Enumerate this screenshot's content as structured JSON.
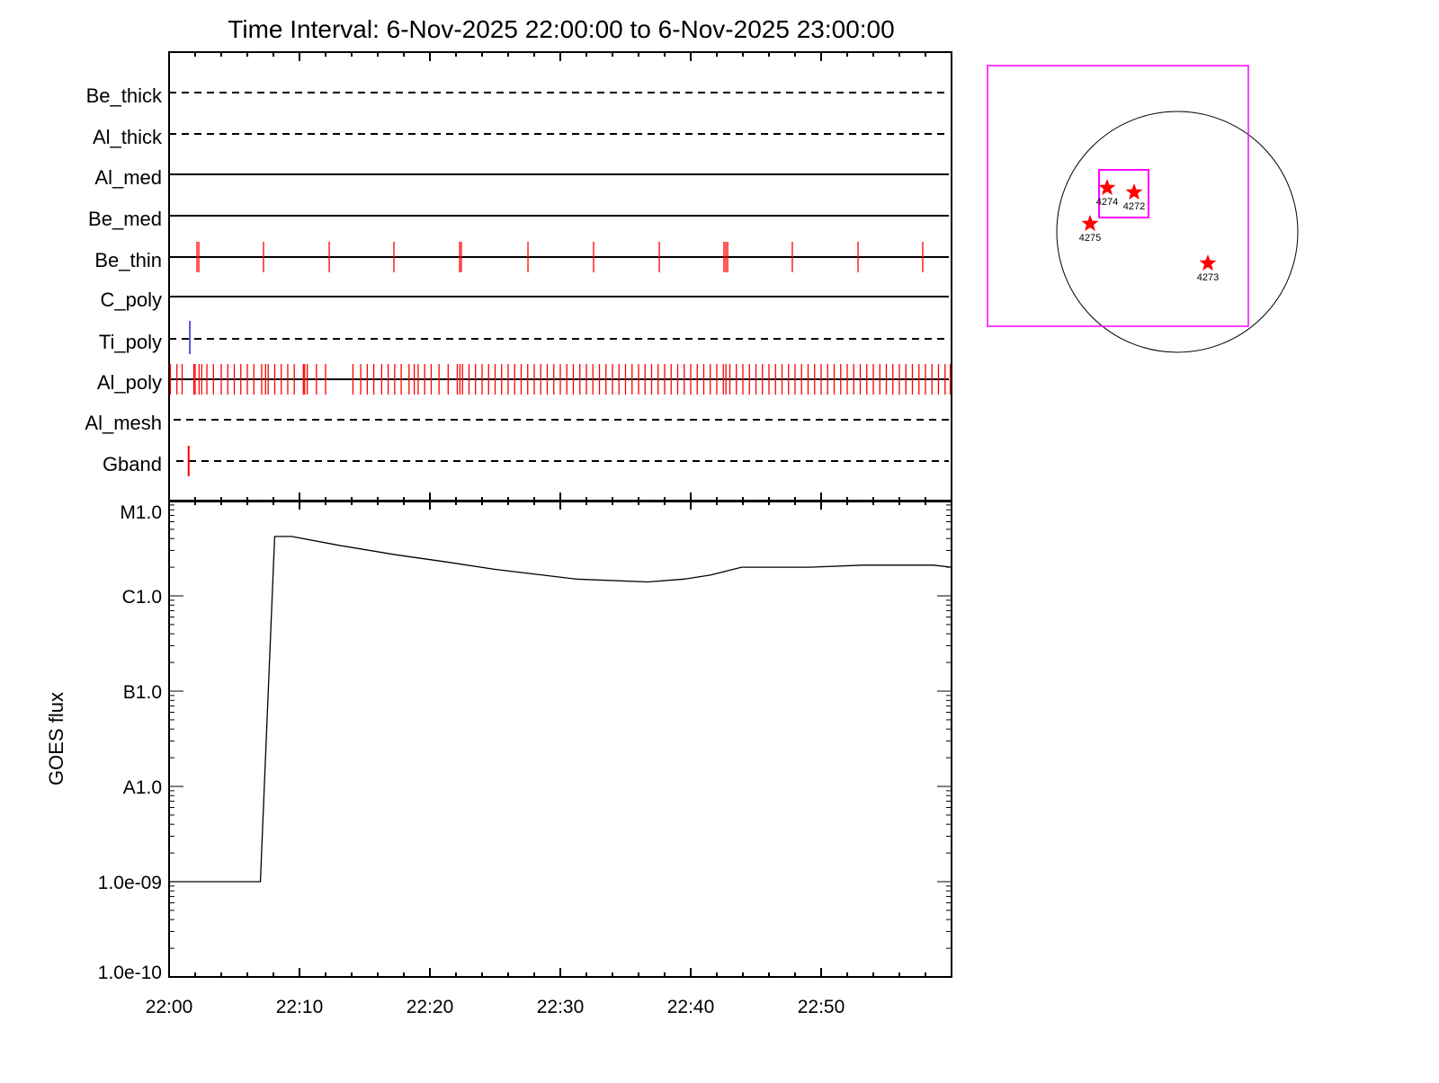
{
  "chart_data": [
    {
      "type": "event-timeline",
      "title": "Time Interval:  6-Nov-2025 22:00:00 to  6-Nov-2025 23:00:00",
      "x_range_minutes_after": "22:00",
      "xlim": [
        0,
        60
      ],
      "rows": [
        {
          "name": "Be_thick",
          "style": "dashed",
          "events": []
        },
        {
          "name": "Al_thick",
          "style": "dashed",
          "events": []
        },
        {
          "name": "Al_med",
          "style": "solid",
          "events": []
        },
        {
          "name": "Be_med",
          "style": "solid",
          "events": []
        },
        {
          "name": "Be_thin",
          "style": "solid",
          "color": "#ff0000",
          "events": [
            2.14,
            2.28,
            7.24,
            12.28,
            17.24,
            22.28,
            22.41,
            27.52,
            32.55,
            37.59,
            42.55,
            42.69,
            42.83,
            47.79,
            52.83,
            57.79
          ]
        },
        {
          "name": "C_poly",
          "style": "solid",
          "events": []
        },
        {
          "name": "Ti_poly",
          "style": "dashed",
          "color": "#0000cc",
          "events": [
            1.59
          ]
        },
        {
          "name": "Al_poly",
          "style": "solid",
          "color": "#ff0000",
          "events": [
            0.1,
            0.6,
            1.0,
            1.9,
            2.0,
            2.3,
            2.5,
            2.9,
            3.4,
            4.0,
            4.5,
            5.0,
            5.5,
            6.0,
            6.5,
            7.1,
            7.4,
            7.6,
            8.1,
            8.6,
            9.1,
            9.6,
            10.3,
            10.4,
            10.6,
            11.3,
            12.0,
            14.1,
            14.7,
            15.2,
            15.7,
            16.3,
            16.8,
            17.3,
            17.8,
            18.4,
            18.8,
            19.1,
            19.6,
            20.1,
            20.7,
            21.4,
            22.1,
            22.3,
            22.5,
            23.0,
            23.5,
            24.0,
            24.5,
            25.0,
            25.5,
            26.0,
            26.5,
            27.0,
            27.5,
            28.0,
            28.5,
            29.0,
            29.5,
            30.0,
            30.5,
            31.0,
            31.5,
            32.0,
            32.5,
            33.0,
            33.5,
            34.0,
            34.5,
            35.0,
            35.5,
            36.0,
            36.5,
            37.0,
            37.5,
            38.0,
            38.5,
            39.0,
            39.5,
            40.0,
            40.5,
            41.0,
            41.5,
            42.0,
            42.5,
            42.7,
            43.0,
            43.5,
            44.0,
            44.5,
            45.0,
            45.5,
            46.0,
            46.5,
            47.0,
            47.5,
            48.0,
            48.5,
            49.0,
            49.5,
            50.0,
            50.5,
            51.0,
            51.5,
            52.0,
            52.5,
            53.0,
            53.5,
            54.0,
            54.5,
            55.0,
            55.5,
            56.0,
            56.5,
            57.0,
            57.5,
            58.0,
            58.5,
            59.0,
            59.5,
            59.9
          ]
        },
        {
          "name": "Al_mesh",
          "style": "dashed",
          "events": []
        },
        {
          "name": "Gband",
          "style": "dashed",
          "color": "#ff0000",
          "events": [
            1.5
          ]
        }
      ]
    },
    {
      "type": "line",
      "ylabel": "GOES flux",
      "yscale": "log",
      "ylim": [
        1e-10,
        1e-05
      ],
      "y_tick_labels": [
        {
          "value": 1e-05,
          "label": "M1.0"
        },
        {
          "value": 1e-06,
          "label": "C1.0"
        },
        {
          "value": 1e-07,
          "label": "B1.0"
        },
        {
          "value": 1e-08,
          "label": "A1.0"
        },
        {
          "value": 1e-09,
          "label": "1.0e-09"
        },
        {
          "value": 1e-10,
          "label": "1.0e-10"
        }
      ],
      "x_tick_labels": [
        "22:00",
        "22:10",
        "22:20",
        "22:30",
        "22:40",
        "22:50"
      ],
      "x_minutes": [
        0,
        7.0,
        8.1,
        9.4,
        13.0,
        17.4,
        21.0,
        25.0,
        31.2,
        36.7,
        39.5,
        41.5,
        43.9,
        49.1,
        53.2,
        58.6,
        60
      ],
      "y_values": [
        1e-09,
        1e-09,
        4.2e-06,
        4.2e-06,
        3.4e-06,
        2.7e-06,
        2.3e-06,
        1.9e-06,
        1.5e-06,
        1.4e-06,
        1.5e-06,
        1.65e-06,
        2e-06,
        2e-06,
        2.1e-06,
        2.1e-06,
        2e-06
      ],
      "color": "#000000"
    },
    {
      "type": "sun-map",
      "fov_box_color": "#ff00ff",
      "regions": [
        {
          "label": "4274",
          "color": "#ff0000"
        },
        {
          "label": "4272",
          "color": "#ff0000"
        },
        {
          "label": "4275",
          "color": "#ff0000"
        },
        {
          "label": "4273",
          "color": "#ff0000"
        }
      ]
    }
  ]
}
